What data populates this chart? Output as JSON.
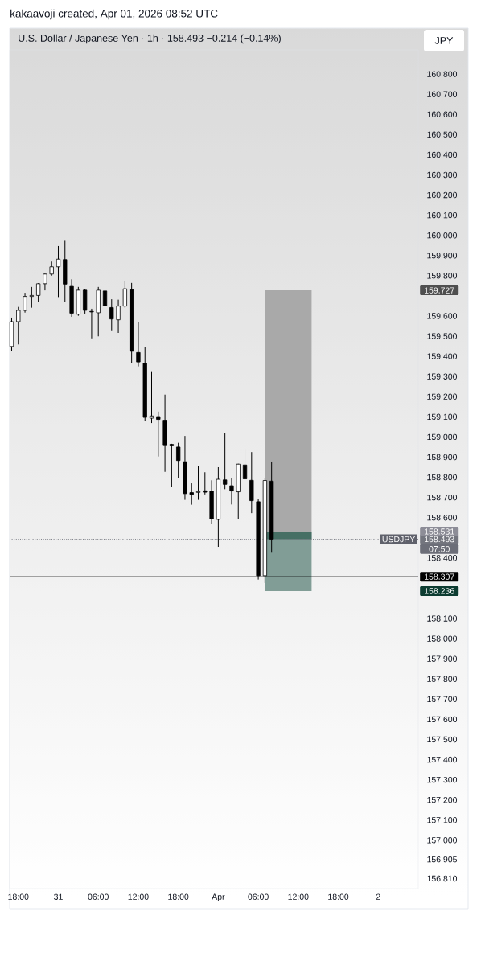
{
  "chart_data": {
    "type": "candlestick",
    "title": "U.S. Dollar / Japanese Yen · 1h · 158.493 −0.214 (−0.14%)",
    "ylabel": "JPY",
    "series": [
      {
        "color": "#000000",
        "x": [
          "2026-03-30T17:00",
          "2026-03-30T18:00",
          "2026-03-30T19:00",
          "2026-03-30T20:00",
          "2026-03-30T21:00",
          "2026-03-30T22:00",
          "2026-03-30T23:00",
          "2026-03-31T00:00",
          "2026-03-31T01:00",
          "2026-03-31T02:00",
          "2026-03-31T03:00",
          "2026-03-31T04:00",
          "2026-03-31T05:00",
          "2026-03-31T06:00",
          "2026-03-31T07:00",
          "2026-03-31T08:00",
          "2026-03-31T09:00",
          "2026-03-31T10:00",
          "2026-03-31T11:00",
          "2026-03-31T12:00",
          "2026-03-31T13:00",
          "2026-03-31T14:00",
          "2026-03-31T15:00",
          "2026-03-31T16:00",
          "2026-03-31T17:00",
          "2026-03-31T18:00",
          "2026-03-31T19:00",
          "2026-03-31T20:00",
          "2026-03-31T21:00",
          "2026-03-31T22:00",
          "2026-03-31T23:00",
          "2026-04-01T00:00",
          "2026-04-01T01:00",
          "2026-04-01T02:00",
          "2026-04-01T03:00",
          "2026-04-01T04:00",
          "2026-04-01T05:00",
          "2026-04-01T06:00",
          "2026-04-01T07:00",
          "2026-04-01T08:00"
        ],
        "ohlc": [
          [
            159.449,
            159.592,
            159.425,
            159.572
          ],
          [
            159.572,
            159.645,
            159.459,
            159.628
          ],
          [
            159.628,
            159.715,
            159.617,
            159.697
          ],
          [
            159.697,
            159.744,
            159.641,
            159.702
          ],
          [
            159.702,
            159.763,
            159.67,
            159.76
          ],
          [
            159.76,
            159.811,
            159.727,
            159.808
          ],
          [
            159.808,
            159.87,
            159.8,
            159.844
          ],
          [
            159.844,
            159.947,
            159.694,
            159.882
          ],
          [
            159.88,
            159.973,
            159.67,
            159.758
          ],
          [
            159.747,
            159.782,
            159.596,
            159.614
          ],
          [
            159.609,
            159.744,
            159.601,
            159.728
          ],
          [
            159.728,
            159.734,
            159.612,
            159.628
          ],
          [
            159.623,
            159.636,
            159.489,
            159.62
          ],
          [
            159.616,
            159.744,
            159.499,
            159.728
          ],
          [
            159.724,
            159.791,
            159.628,
            159.651
          ],
          [
            159.642,
            159.683,
            159.529,
            159.585
          ],
          [
            159.581,
            159.681,
            159.516,
            159.649
          ],
          [
            159.649,
            159.774,
            159.641,
            159.735
          ],
          [
            159.731,
            159.764,
            159.368,
            159.425
          ],
          [
            159.419,
            159.569,
            159.35,
            159.372
          ],
          [
            159.366,
            159.448,
            159.08,
            159.097
          ],
          [
            159.093,
            159.326,
            159.069,
            159.104
          ],
          [
            159.101,
            159.126,
            158.903,
            159.087
          ],
          [
            159.083,
            159.21,
            158.827,
            158.961
          ],
          [
            158.963,
            158.966,
            158.754,
            158.96
          ],
          [
            158.95,
            158.971,
            158.797,
            158.883
          ],
          [
            158.877,
            159.005,
            158.688,
            158.719
          ],
          [
            158.724,
            158.77,
            158.664,
            158.715
          ],
          [
            158.725,
            158.854,
            158.688,
            158.729
          ],
          [
            158.733,
            158.825,
            158.715,
            158.726
          ],
          [
            158.731,
            158.785,
            158.568,
            158.594
          ],
          [
            158.591,
            158.85,
            158.455,
            158.79
          ],
          [
            158.787,
            159.018,
            158.741,
            158.765
          ],
          [
            158.758,
            158.794,
            158.665,
            158.732
          ],
          [
            158.728,
            158.867,
            158.592,
            158.865
          ],
          [
            158.861,
            158.941,
            158.79,
            158.792
          ],
          [
            158.785,
            158.925,
            158.622,
            158.684
          ],
          [
            158.679,
            158.691,
            158.293,
            158.312
          ],
          [
            158.312,
            158.798,
            158.276,
            158.784
          ],
          [
            158.781,
            158.878,
            158.426,
            158.493
          ]
        ]
      },
      {
        "type": "area",
        "color": "#a9a9a9",
        "x": [
          "2026-04-01T07:00",
          "2026-04-01T14:00"
        ],
        "values": [
          null,
          null
        ],
        "lower": [
          158.531,
          158.531
        ],
        "upper": [
          159.727,
          159.727
        ]
      },
      {
        "type": "area",
        "color": "#819d96",
        "x": [
          "2026-04-01T07:00",
          "2026-04-01T14:00"
        ],
        "values": [
          null,
          null
        ],
        "lower": [
          158.236,
          158.236
        ],
        "upper": [
          158.531,
          158.531
        ]
      },
      {
        "type": "area",
        "color": "#466f64",
        "x": [
          "2026-04-01T07:00",
          "2026-04-01T14:00"
        ],
        "values": [
          null,
          null
        ],
        "lower": [
          158.493,
          158.493
        ],
        "upper": [
          158.531,
          158.531
        ]
      }
    ],
    "ref_lines": [
      {
        "axis": "y",
        "value": 158.307,
        "label": "158.307",
        "color": "#000000"
      },
      {
        "axis": "y",
        "value": 158.493,
        "label": "158.493",
        "color": "#73757e",
        "line_style": "dotted"
      }
    ],
    "annotations": [
      "kakaavoji created, Apr 01, 2026 08:52 UTC",
      "159.727",
      "158.531",
      "158.236",
      "USDJPY",
      "07:50"
    ],
    "xlim": [
      "2026-03-30T16:42",
      "2026-04-02T06:00"
    ],
    "xticks": [
      {
        "value": "2026-03-30T18:00",
        "label": "18:00"
      },
      {
        "value": "2026-03-31T00:00",
        "label": "31"
      },
      {
        "value": "2026-03-31T06:00",
        "label": "06:00"
      },
      {
        "value": "2026-03-31T12:00",
        "label": "12:00"
      },
      {
        "value": "2026-03-31T18:00",
        "label": "18:00"
      },
      {
        "value": "2026-04-01T00:00",
        "label": "Apr"
      },
      {
        "value": "2026-04-01T06:00",
        "label": "06:00"
      },
      {
        "value": "2026-04-01T12:00",
        "label": "12:00"
      },
      {
        "value": "2026-04-01T18:00",
        "label": "18:00"
      },
      {
        "value": "2026-04-02T00:00",
        "label": "2"
      }
    ],
    "ylim": [
      156.76,
      160.92
    ],
    "yticks": [
      {
        "value": 156.81,
        "label": "156.810"
      },
      {
        "value": 156.905,
        "label": "156.905"
      },
      {
        "value": 157.0,
        "label": "157.000"
      },
      {
        "value": 157.1,
        "label": "157.100"
      },
      {
        "value": 157.2,
        "label": "157.200"
      },
      {
        "value": 157.3,
        "label": "157.300"
      },
      {
        "value": 157.4,
        "label": "157.400"
      },
      {
        "value": 157.5,
        "label": "157.500"
      },
      {
        "value": 157.6,
        "label": "157.600"
      },
      {
        "value": 157.7,
        "label": "157.700"
      },
      {
        "value": 157.8,
        "label": "157.800"
      },
      {
        "value": 157.9,
        "label": "157.900"
      },
      {
        "value": 158.0,
        "label": "158.000"
      },
      {
        "value": 158.1,
        "label": "158.100"
      },
      {
        "value": 158.4,
        "label": "158.400"
      },
      {
        "value": 158.6,
        "label": "158.600"
      },
      {
        "value": 158.7,
        "label": "158.700"
      },
      {
        "value": 158.8,
        "label": "158.800"
      },
      {
        "value": 158.9,
        "label": "158.900"
      },
      {
        "value": 159.0,
        "label": "159.000"
      },
      {
        "value": 159.1,
        "label": "159.100"
      },
      {
        "value": 159.2,
        "label": "159.200"
      },
      {
        "value": 159.3,
        "label": "159.300"
      },
      {
        "value": 159.4,
        "label": "159.400"
      },
      {
        "value": 159.5,
        "label": "159.500"
      },
      {
        "value": 159.6,
        "label": "159.600"
      },
      {
        "value": 159.8,
        "label": "159.800"
      },
      {
        "value": 159.9,
        "label": "159.900"
      },
      {
        "value": 160.0,
        "label": "160.000"
      },
      {
        "value": 160.1,
        "label": "160.100"
      },
      {
        "value": 160.2,
        "label": "160.200"
      },
      {
        "value": 160.3,
        "label": "160.300"
      },
      {
        "value": 160.4,
        "label": "160.400"
      },
      {
        "value": 160.5,
        "label": "160.500"
      },
      {
        "value": 160.6,
        "label": "160.600"
      },
      {
        "value": 160.7,
        "label": "160.700"
      },
      {
        "value": 160.8,
        "label": "160.800"
      }
    ]
  }
}
